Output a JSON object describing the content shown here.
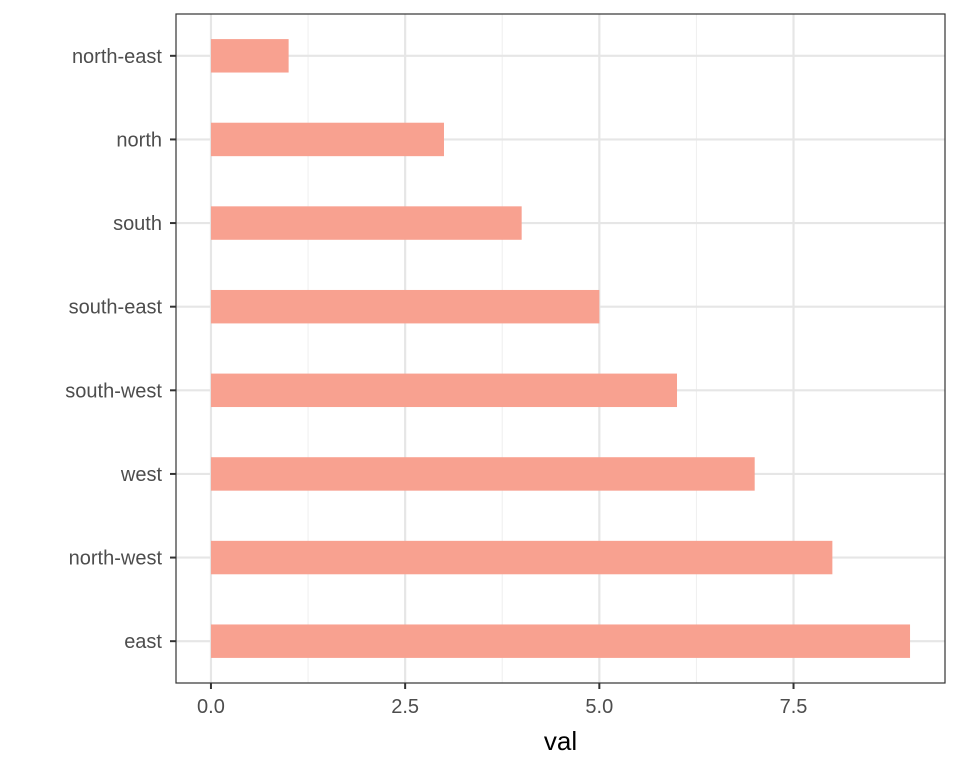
{
  "chart_data": {
    "type": "bar",
    "orientation": "horizontal",
    "title": "",
    "xlabel": "val",
    "ylabel": "",
    "categories": [
      "east",
      "north-west",
      "west",
      "south-west",
      "south-east",
      "south",
      "north",
      "north-east"
    ],
    "values": [
      9,
      8,
      7,
      6,
      5,
      4,
      3,
      1
    ],
    "xlim": [
      -0.45,
      9.45
    ],
    "x_ticks": [
      0,
      2.5,
      5,
      7.5
    ],
    "x_tick_labels": [
      "0.0",
      "2.5",
      "5.0",
      "7.5"
    ],
    "grid": true,
    "legend": "none",
    "colors": {
      "bar": "#f8a190",
      "grid_major": "#e6e6e6",
      "grid_minor": "#f0f0f0",
      "axis": "#333333"
    }
  }
}
